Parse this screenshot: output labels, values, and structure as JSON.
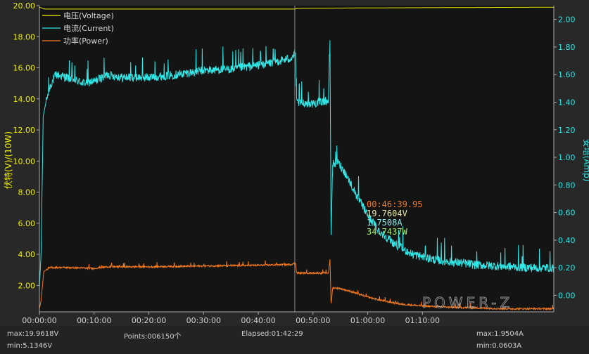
{
  "chart_data": {
    "type": "line",
    "x_axis": {
      "tick_labels": [
        "00:00:00",
        "00:10:00",
        "00:20:00",
        "00:30:00",
        "00:40:00",
        "00:50:00",
        "01:00:00",
        "01:10:00"
      ],
      "range_minutes": [
        0,
        94
      ]
    },
    "y_left": {
      "label": "伏特(V)/(10W)",
      "tick_labels": [
        "2.00",
        "4.00",
        "6.00",
        "8.00",
        "10.00",
        "12.00",
        "14.00",
        "16.00",
        "18.00",
        "20.00"
      ],
      "range": [
        0.3,
        20.0
      ]
    },
    "y_right": {
      "label": "安培(Amp)",
      "tick_labels": [
        "0.00",
        "0.20",
        "0.40",
        "0.60",
        "0.80",
        "1.00",
        "1.20",
        "1.40",
        "1.60",
        "1.80",
        "2.00"
      ],
      "range": [
        -0.12,
        2.1
      ]
    },
    "grid": false,
    "legend_position": "top-left",
    "series": [
      {
        "name": "电压(Voltage)",
        "color": "#f0f000",
        "axis": "left",
        "points": [
          [
            0,
            19.9
          ],
          [
            1,
            19.78
          ],
          [
            46.7,
            19.78
          ],
          [
            47,
            19.82
          ],
          [
            58,
            19.85
          ],
          [
            94,
            19.9
          ]
        ]
      },
      {
        "name": "电流(Current)",
        "color": "#30e8e8",
        "axis": "right",
        "noise": 0.04,
        "points": [
          [
            0,
            0.05
          ],
          [
            0.3,
            0.3
          ],
          [
            0.7,
            1.3
          ],
          [
            1.2,
            1.4
          ],
          [
            2,
            1.52
          ],
          [
            3,
            1.6
          ],
          [
            5,
            1.58
          ],
          [
            8,
            1.54
          ],
          [
            10,
            1.55
          ],
          [
            12.5,
            1.6
          ],
          [
            15,
            1.58
          ],
          [
            20,
            1.58
          ],
          [
            25,
            1.6
          ],
          [
            30,
            1.63
          ],
          [
            35,
            1.64
          ],
          [
            40,
            1.67
          ],
          [
            44,
            1.7
          ],
          [
            46,
            1.72
          ],
          [
            46.8,
            1.75
          ],
          [
            47,
            1.4
          ],
          [
            50,
            1.39
          ],
          [
            52,
            1.41
          ],
          [
            52.8,
            1.41
          ],
          [
            53.1,
            1.82
          ],
          [
            53.3,
            0.45
          ],
          [
            53.6,
            0.95
          ],
          [
            54.5,
            0.97
          ],
          [
            56,
            0.88
          ],
          [
            58,
            0.72
          ],
          [
            60,
            0.58
          ],
          [
            62,
            0.47
          ],
          [
            65,
            0.37
          ],
          [
            68,
            0.3
          ],
          [
            72,
            0.26
          ],
          [
            76,
            0.24
          ],
          [
            80,
            0.22
          ],
          [
            85,
            0.21
          ],
          [
            90,
            0.2
          ],
          [
            94,
            0.2
          ]
        ]
      },
      {
        "name": "功率(Power)",
        "color": "#f07820",
        "axis": "left",
        "noise": 0.07,
        "points": [
          [
            0,
            0.5
          ],
          [
            0.3,
            1.0
          ],
          [
            0.8,
            2.9
          ],
          [
            2,
            3.15
          ],
          [
            5,
            3.15
          ],
          [
            10,
            3.1
          ],
          [
            12.5,
            3.2
          ],
          [
            20,
            3.2
          ],
          [
            30,
            3.25
          ],
          [
            40,
            3.3
          ],
          [
            46,
            3.35
          ],
          [
            46.8,
            3.45
          ],
          [
            47,
            2.8
          ],
          [
            52.8,
            2.8
          ],
          [
            53.1,
            3.7
          ],
          [
            53.3,
            0.8
          ],
          [
            53.6,
            1.85
          ],
          [
            55,
            1.8
          ],
          [
            57,
            1.6
          ],
          [
            60,
            1.25
          ],
          [
            63,
            1.0
          ],
          [
            66,
            0.8
          ],
          [
            70,
            0.68
          ],
          [
            75,
            0.6
          ],
          [
            80,
            0.55
          ],
          [
            85,
            0.5
          ],
          [
            94,
            0.5
          ]
        ]
      }
    ],
    "cursor": {
      "time": "00:46:39.95",
      "time_minutes": 46.67,
      "voltage": "19.7604V",
      "current": "1.7508A",
      "power": "34.7437W"
    }
  },
  "footer": {
    "max_voltage": "max:19.9618V",
    "min_voltage": "min:5.1346V",
    "points": "Points:006150个",
    "elapsed": "Elapsed:01:42:29",
    "max_current": "max:1.9504A",
    "min_current": "min:0.0603A"
  },
  "watermark": "POWER-Z"
}
